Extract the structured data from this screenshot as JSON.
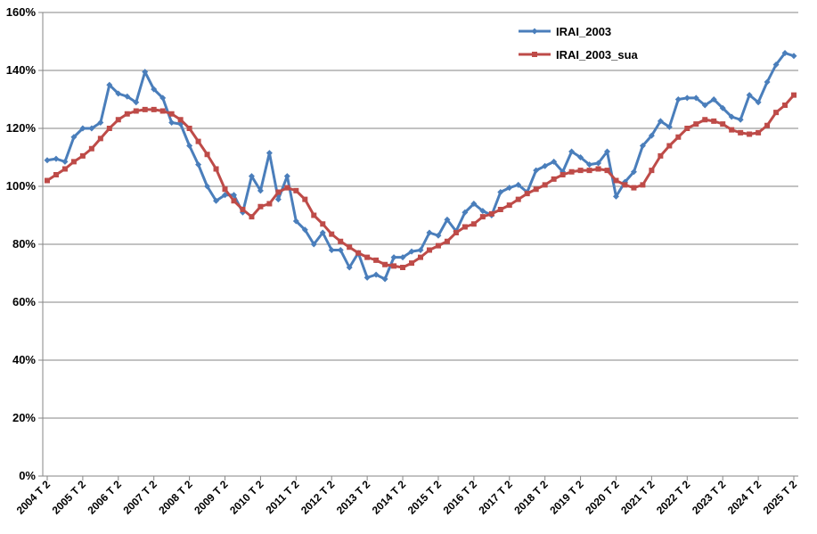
{
  "chart_data": {
    "type": "line",
    "title": "",
    "xlabel": "",
    "ylabel": "",
    "ylim": [
      0,
      160
    ],
    "y_unit": "%",
    "yticks": [
      0,
      20,
      40,
      60,
      80,
      100,
      120,
      140,
      160
    ],
    "ytick_labels": [
      "0%",
      "20%",
      "40%",
      "60%",
      "80%",
      "100%",
      "120%",
      "140%",
      "160%"
    ],
    "xtick_labels": [
      "2004 T 2",
      "2005 T 2",
      "2006 T 2",
      "2007 T 2",
      "2008 T 2",
      "2009 T 2",
      "2010 T 2",
      "2011 T 2",
      "2012 T 2",
      "2013 T 2",
      "2014 T 2",
      "2015 T 2",
      "2016 T 2",
      "2017 T 2",
      "2018 T 2",
      "2019 T 2",
      "2020 T 2",
      "2021 T 2",
      "2022 T 2",
      "2023 T 2",
      "2024 T 2",
      "2025 T 2"
    ],
    "grid": true,
    "legend_position": "top-right",
    "series": [
      {
        "name": "IRAI_2003",
        "color": "#4a7ebb",
        "marker": "diamond",
        "values": [
          109,
          109.5,
          108.5,
          117,
          120,
          120,
          122,
          135,
          132,
          131,
          129,
          139.5,
          133.5,
          130.5,
          122,
          121.5,
          114,
          107.5,
          100,
          95,
          97,
          97,
          91,
          103.5,
          98.5,
          111.5,
          95.5,
          103.5,
          88,
          85,
          80,
          84,
          78,
          78,
          72,
          77,
          68.5,
          69.5,
          68,
          75.5,
          75.5,
          77.5,
          78,
          84,
          83,
          88.5,
          84.5,
          91,
          94,
          91.5,
          90,
          98,
          99.5,
          100.5,
          98,
          105.5,
          107,
          108.5,
          105,
          112,
          110,
          107.5,
          108,
          112,
          96.5,
          101.5,
          105,
          114,
          117.5,
          122.5,
          120.5,
          130,
          130.5,
          130.5,
          128,
          130,
          127,
          124,
          123,
          131.5,
          129,
          136,
          142,
          146,
          145
        ]
      },
      {
        "name": "IRAI_2003_sua",
        "color": "#be4b48",
        "marker": "square",
        "values": [
          102,
          104,
          106,
          108.5,
          110.5,
          113,
          116.5,
          120,
          123,
          125,
          126,
          126.5,
          126.5,
          126,
          125,
          123,
          120,
          115.5,
          111,
          106,
          99,
          95,
          92,
          89.5,
          93,
          94,
          98,
          99.5,
          98.5,
          95.5,
          90,
          87,
          83.5,
          81,
          79,
          77,
          75.5,
          74.5,
          73,
          72.5,
          72,
          73.5,
          75.5,
          78,
          79.5,
          81,
          84,
          86,
          87,
          89.5,
          90.5,
          92,
          93.5,
          95.5,
          97.5,
          99,
          100.5,
          102.5,
          104,
          105,
          105.5,
          105.5,
          106,
          105.5,
          102,
          100.5,
          99.5,
          100.5,
          105.5,
          110.5,
          114,
          117,
          120,
          121.5,
          123,
          122.5,
          121.5,
          119.5,
          118.5,
          118,
          118.5,
          121,
          125.5,
          128,
          131.5
        ]
      }
    ]
  }
}
